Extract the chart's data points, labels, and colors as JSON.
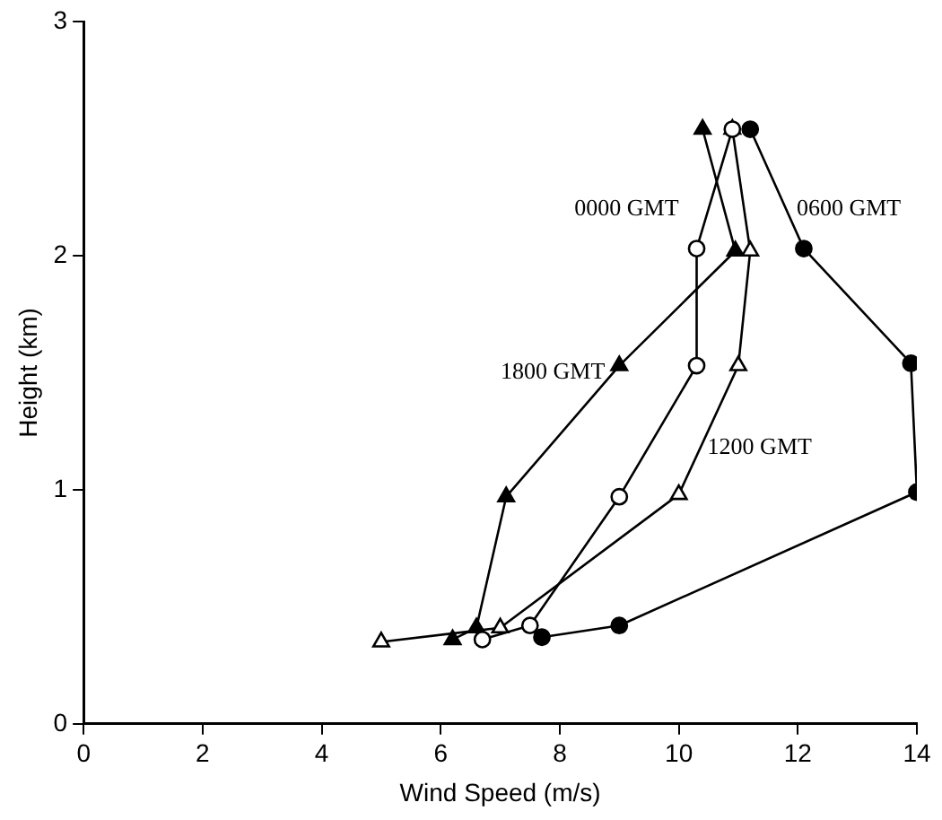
{
  "chart_data": {
    "type": "line",
    "xlabel": "Wind Speed (m/s)",
    "ylabel": "Height (km)",
    "xlim": [
      0,
      14
    ],
    "xticks": [
      0,
      2,
      4,
      6,
      8,
      10,
      12,
      14
    ],
    "ylim": [
      0,
      3
    ],
    "yticks": [
      0,
      1,
      2,
      3
    ],
    "grid": false,
    "legend": false,
    "line_style": "solid",
    "series": [
      {
        "name": "0000 GMT",
        "color": "#000000",
        "marker": "circle",
        "colors": [
          "#ffffff",
          "#ffffff",
          "#ffffff",
          "#ffffff",
          "#ffffff",
          "#ffffff"
        ],
        "x": [
          6.7,
          7.5,
          9.0,
          10.3,
          10.3,
          10.9
        ],
        "values": [
          0.36,
          0.42,
          0.97,
          1.53,
          2.03,
          2.54
        ]
      },
      {
        "name": "0600 GMT",
        "color": "#000000",
        "marker": "circle",
        "colors": [
          "#000000",
          "#000000",
          "#000000",
          "#000000",
          "#000000",
          "#000000"
        ],
        "x": [
          7.7,
          9.0,
          14.0,
          13.9,
          12.1,
          11.2
        ],
        "values": [
          0.37,
          0.42,
          0.99,
          1.54,
          2.03,
          2.54
        ]
      },
      {
        "name": "1200 GMT",
        "color": "#000000",
        "marker": "triangle",
        "colors": [
          "#ffffff",
          "#ffffff",
          "#ffffff",
          "#ffffff",
          "#ffffff",
          "#ffffff"
        ],
        "x": [
          5.0,
          7.0,
          10.0,
          11.0,
          11.2,
          10.9
        ],
        "values": [
          0.35,
          0.41,
          0.98,
          1.53,
          2.02,
          2.54
        ]
      },
      {
        "name": "1800 GMT",
        "color": "#000000",
        "marker": "triangle",
        "colors": [
          "#000000",
          "#000000",
          "#000000",
          "#000000",
          "#000000",
          "#000000"
        ],
        "x": [
          6.2,
          6.6,
          7.1,
          9.0,
          10.95,
          10.4
        ],
        "values": [
          0.36,
          0.41,
          0.97,
          1.53,
          2.02,
          2.54
        ]
      }
    ]
  }
}
